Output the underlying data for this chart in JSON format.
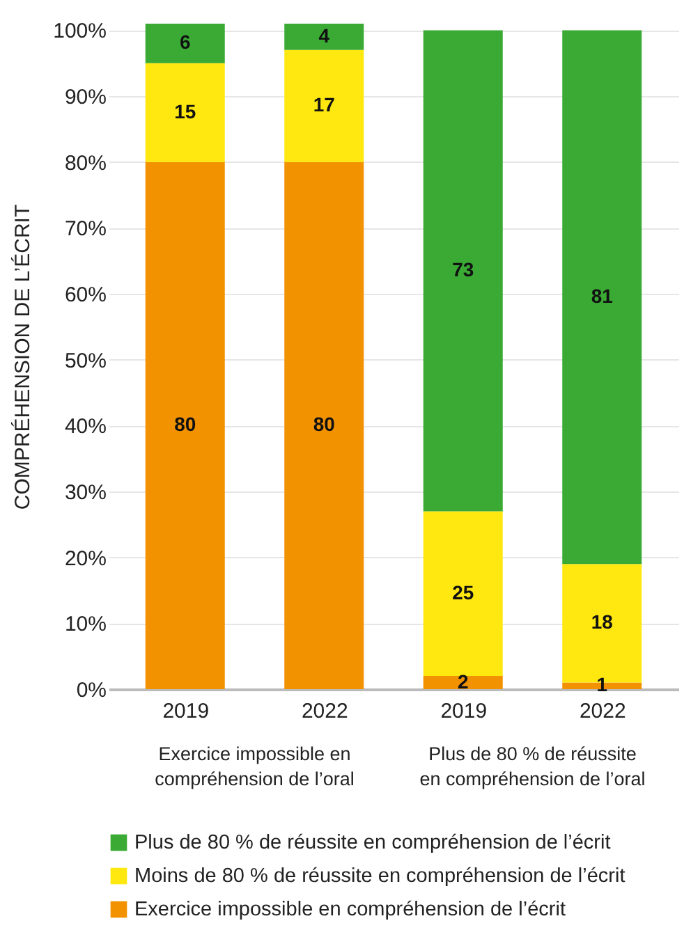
{
  "chart_data": {
    "type": "bar",
    "stacked": true,
    "ylabel": "COMPRÉHENSION DE L’ÉCRIT",
    "categories": [
      "2019",
      "2022",
      "2019",
      "2022"
    ],
    "series": [
      {
        "name": "Exercice impossible en compréhension de l’écrit",
        "color": "#f39200",
        "values": [
          80,
          80,
          2,
          1
        ]
      },
      {
        "name": "Moins de 80 % de réussite en compréhension de l’écrit",
        "color": "#ffe80f",
        "values": [
          15,
          17,
          25,
          18
        ]
      },
      {
        "name": "Plus de 80 % de réussite en compréhension de l’écrit",
        "color": "#3aaa35",
        "values": [
          6,
          4,
          73,
          81
        ]
      }
    ],
    "ylim": [
      0,
      101
    ],
    "yticks": [
      {
        "value": 0,
        "label": "0%"
      },
      {
        "value": 10,
        "label": "10%"
      },
      {
        "value": 20,
        "label": "20%"
      },
      {
        "value": 30,
        "label": "30%"
      },
      {
        "value": 40,
        "label": "40%"
      },
      {
        "value": 50,
        "label": "50%"
      },
      {
        "value": 60,
        "label": "60%"
      },
      {
        "value": 70,
        "label": "70%"
      },
      {
        "value": 80,
        "label": "80%"
      },
      {
        "value": 90,
        "label": "90%"
      },
      {
        "value": 100,
        "label": "100%"
      }
    ],
    "annotations": [
      "Exercice impossible en compréhension de l’oral",
      "Plus de 80 % de réussite en compréhension de l’oral"
    ],
    "data_labels": true,
    "grid": "y",
    "legend": "bottom"
  }
}
